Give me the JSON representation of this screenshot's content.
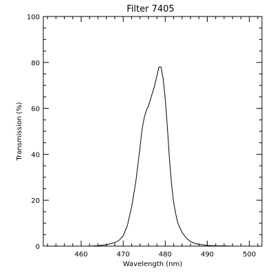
{
  "chart_data": {
    "type": "line",
    "title": "Filter 7405",
    "xlabel": "Wavelength (nm)",
    "ylabel": "Transmission (%)",
    "xlim": [
      451,
      503
    ],
    "ylim": [
      0,
      100
    ],
    "grid": false,
    "x_ticks": [
      460,
      470,
      480,
      490,
      500
    ],
    "x_tick_labels": [
      "460",
      "470",
      "480",
      "490",
      "500"
    ],
    "y_ticks": [
      0,
      20,
      40,
      60,
      80,
      100
    ],
    "y_tick_labels": [
      "0",
      "20",
      "40",
      "60",
      "80",
      "100"
    ],
    "series": [
      {
        "x": [
          460,
          462,
          464,
          466,
          468,
          469,
          470,
          471,
          472,
          473,
          474,
          474.5,
          475,
          475.5,
          476,
          476.5,
          477,
          477.5,
          478,
          478.5,
          479,
          479.5,
          480,
          480.5,
          481,
          481.5,
          482,
          482.5,
          483,
          484,
          485,
          486,
          487,
          488,
          490,
          492,
          494,
          496,
          498,
          500
        ],
        "y": [
          0,
          0,
          0.2,
          0.6,
          1.5,
          2.5,
          4.5,
          9,
          17,
          28,
          43,
          51,
          56,
          59,
          61,
          64,
          67,
          70,
          74,
          78,
          78,
          73,
          64,
          52,
          38,
          27,
          19,
          14,
          10,
          6,
          3.5,
          2,
          1.2,
          0.8,
          0.3,
          0.1,
          0.1,
          0,
          0,
          0
        ]
      }
    ]
  }
}
